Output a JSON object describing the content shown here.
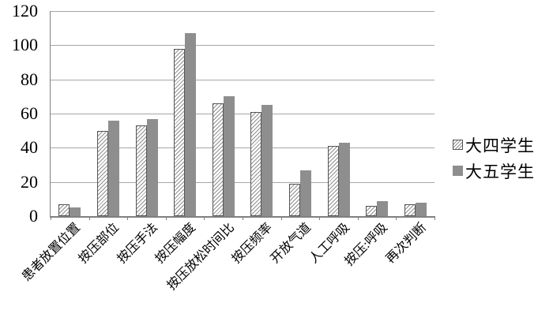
{
  "chart_data": {
    "type": "bar",
    "title": "",
    "categories": [
      "患者放置位置",
      "按压部位",
      "按压手法",
      "按压幅度",
      "按压放松时间比",
      "按压频率",
      "开放气道",
      "人工呼吸",
      "按压:呼吸",
      "再次判断"
    ],
    "series": [
      {
        "name": "大四学生",
        "pattern": "hatched",
        "values": [
          7,
          50,
          53,
          98,
          66,
          61,
          19,
          41,
          6,
          7
        ]
      },
      {
        "name": "大五学生",
        "pattern": "solid",
        "values": [
          5,
          56,
          57,
          107,
          70,
          65,
          27,
          43,
          9,
          8
        ]
      }
    ],
    "ylim": [
      0,
      120
    ],
    "ytick_step": 20,
    "yticks": [
      "0",
      "20",
      "40",
      "60",
      "80",
      "100",
      "120"
    ],
    "grid": true,
    "legend_position": "right",
    "xtick_rotation": 45,
    "colors": {
      "solid_series": "#8e8e8e",
      "hatch_stripe": "#8f8f8f",
      "hatch_background": "#ffffff",
      "hatch_border": "#555555",
      "gridline": "#a6a6a6",
      "axis": "#808080",
      "text": "#000000",
      "background": "#ffffff"
    }
  }
}
